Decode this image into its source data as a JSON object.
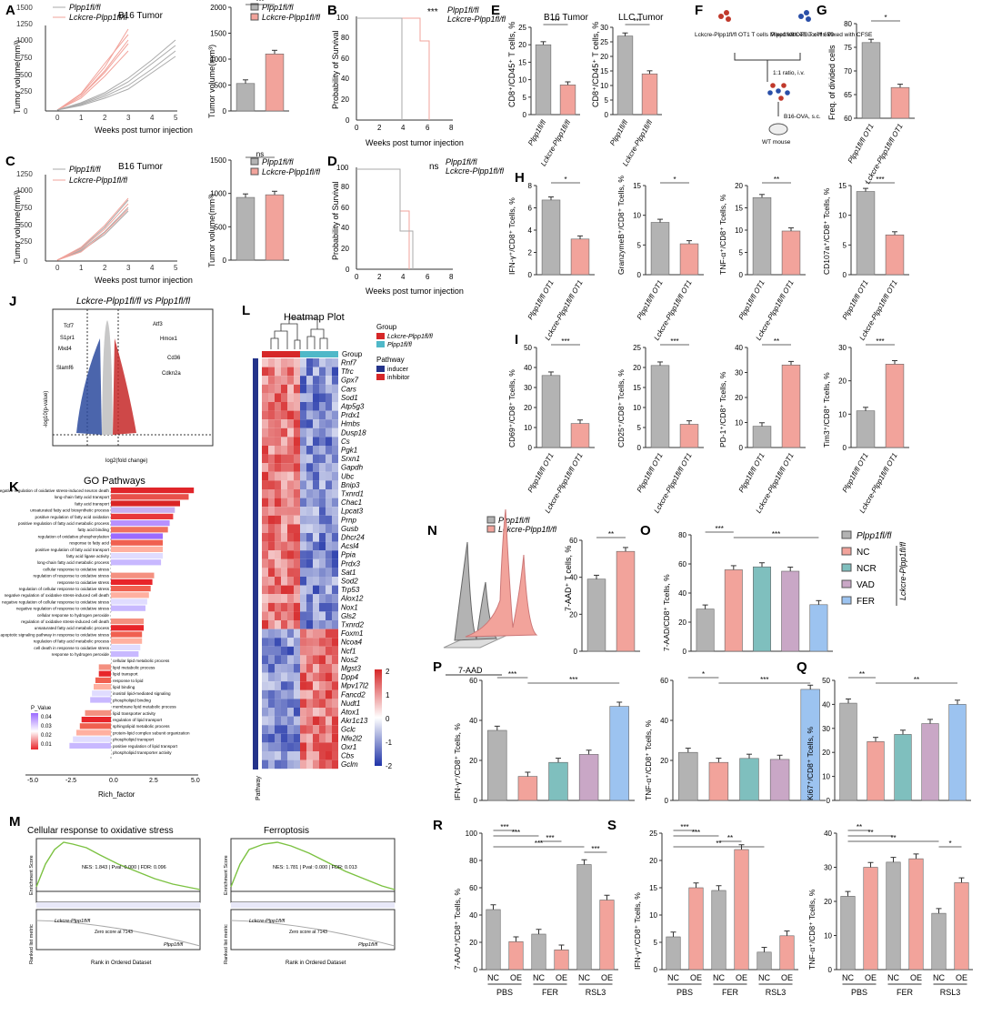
{
  "colors": {
    "grey": "#b3b3b3",
    "pink": "#f2a39b",
    "teal": "#7fbfbe",
    "purple": "#c9a7c6",
    "blue": "#9cc3f0",
    "red": "#d62728",
    "navy": "#24338a",
    "gsea": "#7cc242"
  },
  "panel_letters": [
    "A",
    "B",
    "C",
    "D",
    "E",
    "F",
    "G",
    "H",
    "I",
    "J",
    "K",
    "L",
    "M",
    "N",
    "O",
    "P",
    "Q",
    "R",
    "S"
  ],
  "legend": {
    "flfl": "Plpp1fl/fl",
    "lck": "Lckcre-Plpp1fl/fl",
    "ot1_flfl": "Plpp1fl/fl OT1",
    "ot1_lck": "Lckcre-Plpp1fl/fl OT1",
    "lck_short": "Lckcre-Plpp1fl/fl"
  },
  "panel_text": {
    "a_title": "B16 Tumor",
    "c_title": "B16 Tumor",
    "tumor_vol": "Tumor volume(mm³)",
    "weeks": "Weeks post tumor injection",
    "surv": "Probability of Survival",
    "e_b16": "B16 Tumor",
    "e_llc": "LLC Tumor",
    "e_y": "CD8⁺/CD45⁺ T cells, %",
    "f_left": "Lckcre-Plpp1fl/fl OT1 T cells Mixed with eFluor™ 670",
    "f_right": "Plpp1fl/fl OT1 T cells Mixed with CFSE",
    "f_ratio": "1:1 ratio, i.v.",
    "f_ova": "B16-OVA, s.c.",
    "f_mouse": "WT mouse",
    "g_y": "Freq. of divided cells",
    "j_title": "Lckcre-Plpp1fl/fl vs Plpp1fl/fl",
    "j_x": "log2(fold change)",
    "j_y": "-log10(p-value)",
    "k_title": "GO Pathways",
    "k_x": "Rich_factor",
    "k_legend": "P_Value",
    "l_title": "Heatmap Plot",
    "l_group": "Group",
    "l_pathway": "Pathway",
    "l_inducer": "inducer",
    "l_inhibitor": "inhibitor",
    "m1": "Cellular response to oxidative stress",
    "m2": "Ferroptosis",
    "m_es": "Enrichment Score",
    "m_rl": "Ranked list metric",
    "m_rank": "Rank in Ordered Dataset",
    "m_zero": "Zero score at 7143",
    "m1_stats": "NES: 1.843 | Pval: 0.000 | FDR: 0.096",
    "m2_stats": "NES: 1.781 | Pval: 0.000 | FDR: 0.013",
    "n_x": "7-AAD",
    "n_y": "7-AAD⁺ T cells, %",
    "o_y": "7-AAD/CD8⁺ Tcells, %",
    "ns": "ns",
    "sig1": "*",
    "sig2": "**",
    "sig3": "***"
  },
  "chart_data": [
    {
      "panel": "A",
      "type": "line",
      "title": "B16 Tumor",
      "xlabel": "Weeks post tumor injection",
      "ylabel": "Tumor volume(mm³)",
      "xlim": [
        0,
        5
      ],
      "ylim": [
        0,
        1500
      ],
      "xticks": [
        0,
        1,
        2,
        3,
        4,
        5
      ],
      "yticks": [
        0,
        250,
        500,
        750,
        1000,
        1250,
        1500
      ]
    },
    {
      "panel": "A2",
      "type": "bar",
      "categories": [
        "Plpp1fl/fl",
        "Lckcre-Plpp1fl/fl"
      ],
      "values": [
        530,
        1100
      ],
      "ylabel": "Tumor volume(mm³)",
      "ylim": [
        0,
        2000
      ],
      "sig": "***"
    },
    {
      "panel": "B",
      "type": "line",
      "xlabel": "Weeks post tumor injection",
      "ylabel": "Probability of Survival",
      "xlim": [
        0,
        8
      ],
      "ylim": [
        0,
        100
      ],
      "sig": "***"
    },
    {
      "panel": "C",
      "type": "line",
      "title": "B16 Tumor",
      "xlim": [
        0,
        5
      ],
      "ylim": [
        0,
        1500
      ]
    },
    {
      "panel": "C2",
      "type": "bar",
      "categories": [
        "Plpp1fl/fl",
        "Lckcre-Plpp1fl/fl"
      ],
      "values": [
        940,
        980
      ],
      "ylim": [
        0,
        1500
      ],
      "sig": "ns"
    },
    {
      "panel": "D",
      "type": "line",
      "xlim": [
        0,
        8
      ],
      "ylim": [
        0,
        100
      ],
      "sig": "ns"
    },
    {
      "panel": "E1",
      "type": "bar",
      "title": "B16 Tumor",
      "categories": [
        "Plpp1fl/fl",
        "Lckcre-Plpp1fl/fl"
      ],
      "values": [
        20,
        8.5
      ],
      "ylim": [
        0,
        25
      ],
      "sig": "***"
    },
    {
      "panel": "E2",
      "type": "bar",
      "title": "LLC Tumor",
      "categories": [
        "Plpp1fl/fl",
        "Lckcre-Plpp1fl/fl"
      ],
      "values": [
        27,
        14
      ],
      "ylim": [
        0,
        30
      ],
      "sig": "***"
    },
    {
      "panel": "G",
      "type": "bar",
      "categories": [
        "Plpp1fl/fl OT1",
        "Lckcre-Plpp1fl/fl OT1"
      ],
      "values": [
        76,
        66.5
      ],
      "ylim": [
        60,
        80
      ],
      "sig": "*"
    },
    {
      "panel": "H1",
      "type": "bar",
      "ylabel": "IFN-γ⁺/CD8⁺ Tcells, %",
      "categories": [
        "Plpp1fl/fl OT1",
        "Lckcre-Plpp1fl/fl OT1"
      ],
      "values": [
        6.7,
        3.2
      ],
      "ylim": [
        0,
        8
      ],
      "sig": "*"
    },
    {
      "panel": "H2",
      "type": "bar",
      "ylabel": "GranzymeB⁺/CD8⁺ Tcells, %",
      "categories": [
        "Plpp1fl/fl OT1",
        "Lckcre-Plpp1fl/fl OT1"
      ],
      "values": [
        8.8,
        5.2
      ],
      "ylim": [
        0,
        15
      ],
      "sig": "*"
    },
    {
      "panel": "H3",
      "type": "bar",
      "ylabel": "TNF-α⁺/CD8⁺ Tcells, %",
      "categories": [
        "Plpp1fl/fl OT1",
        "Lckcre-Plpp1fl/fl OT1"
      ],
      "values": [
        17.3,
        9.8
      ],
      "ylim": [
        0,
        20
      ],
      "sig": "**"
    },
    {
      "panel": "H4",
      "type": "bar",
      "ylabel": "CD107a⁺/CD8⁺ Tcells, %",
      "categories": [
        "Plpp1fl/fl OT1",
        "Lckcre-Plpp1fl/fl OT1"
      ],
      "values": [
        14,
        6.7
      ],
      "ylim": [
        0,
        15
      ],
      "sig": "***"
    },
    {
      "panel": "I1",
      "type": "bar",
      "ylabel": "CD69⁺/CD8⁺ Tcells, %",
      "categories": [
        "Plpp1fl/fl OT1",
        "Lckcre-Plpp1fl/fl OT1"
      ],
      "values": [
        36,
        12
      ],
      "ylim": [
        0,
        50
      ],
      "sig": "***"
    },
    {
      "panel": "I2",
      "type": "bar",
      "ylabel": "CD25⁺/CD8⁺ Tcells, %",
      "categories": [
        "Plpp1fl/fl OT1",
        "Lckcre-Plpp1fl/fl OT1"
      ],
      "values": [
        20.5,
        5.8
      ],
      "ylim": [
        0,
        25
      ],
      "sig": "***"
    },
    {
      "panel": "I3",
      "type": "bar",
      "ylabel": "PD-1⁺/CD8⁺ Tcells, %",
      "categories": [
        "Plpp1fl/fl OT1",
        "Lckcre-Plpp1fl/fl OT1"
      ],
      "values": [
        8.5,
        33
      ],
      "ylim": [
        0,
        40
      ],
      "sig": "**"
    },
    {
      "panel": "I4",
      "type": "bar",
      "ylabel": "Tim3⁺/CD8⁺ Tcells, %",
      "categories": [
        "Plpp1fl/fl OT1",
        "Lckcre-Plpp1fl/fl OT1"
      ],
      "values": [
        11,
        25
      ],
      "ylim": [
        0,
        30
      ],
      "sig": "***"
    },
    {
      "panel": "N",
      "type": "bar",
      "ylabel": "7-AAD⁺ T cells, %",
      "categories": [
        "Plpp1fl/fl",
        "Lckcre-Plpp1fl/fl"
      ],
      "values": [
        39,
        54
      ],
      "ylim": [
        0,
        60
      ],
      "sig": "**"
    },
    {
      "panel": "O",
      "type": "bar",
      "ylabel": "7-AAD/CD8⁺ Tcells, %",
      "categories": [
        "Plpp1fl/fl",
        "NC",
        "NCR",
        "VAD",
        "FER"
      ],
      "values": [
        29,
        56,
        58,
        55,
        32
      ],
      "ylim": [
        0,
        80
      ],
      "legend": [
        "Plpp1fl/fl",
        "NC",
        "NCR",
        "VAD",
        "FER"
      ]
    },
    {
      "panel": "P1",
      "type": "bar",
      "ylabel": "IFN-γ⁺/CD8⁺ Tcells, %",
      "categories": [
        "Plpp1fl/fl",
        "NC",
        "NCR",
        "VAD",
        "FER"
      ],
      "values": [
        35,
        12,
        19,
        23,
        47
      ],
      "ylim": [
        0,
        60
      ]
    },
    {
      "panel": "P2",
      "type": "bar",
      "ylabel": "TNF-α⁺/CD8⁺ Tcells, %",
      "categories": [
        "Plpp1fl/fl",
        "NC",
        "NCR",
        "VAD",
        "FER"
      ],
      "values": [
        24,
        19,
        21,
        20.5,
        55.5
      ],
      "ylim": [
        0,
        60
      ]
    },
    {
      "panel": "Q",
      "type": "bar",
      "ylabel": "Ki67⁺/CD8⁺ Tcells, %",
      "categories": [
        "Plpp1fl/fl",
        "NC",
        "NCR",
        "VAD",
        "FER"
      ],
      "values": [
        40.5,
        24.5,
        27.5,
        32,
        40
      ],
      "ylim": [
        0,
        50
      ]
    },
    {
      "panel": "R",
      "type": "bar",
      "ylabel": "7-AAD⁺/CD8⁺ Tcells, %",
      "groups": [
        "PBS",
        "FER",
        "RSL3"
      ],
      "categories": [
        "NC",
        "OE",
        "NC",
        "OE",
        "NC",
        "OE"
      ],
      "values": [
        44,
        20.5,
        26,
        14.5,
        77,
        51
      ],
      "ylim": [
        0,
        100
      ]
    },
    {
      "panel": "S1",
      "type": "bar",
      "ylabel": "IFN-γ⁺/CD8⁺ Tcells, %",
      "groups": [
        "PBS",
        "FER",
        "RSL3"
      ],
      "categories": [
        "NC",
        "OE",
        "NC",
        "OE",
        "NC",
        "OE"
      ],
      "values": [
        6,
        15,
        14.5,
        22,
        3.2,
        6.2
      ],
      "ylim": [
        0,
        25
      ]
    },
    {
      "panel": "S2",
      "type": "bar",
      "ylabel": "TNF-α⁺/CD8⁺ Tcells, %",
      "groups": [
        "PBS",
        "FER",
        "RSL3"
      ],
      "categories": [
        "NC",
        "OE",
        "NC",
        "OE",
        "NC",
        "OE"
      ],
      "values": [
        21.5,
        30,
        31.5,
        32.5,
        16.5,
        25.5
      ],
      "ylim": [
        0,
        40
      ]
    },
    {
      "panel": "L",
      "type": "heatmap",
      "title": "Heatmap Plot",
      "genes": [
        "Rnf7",
        "Tfrc",
        "Gpx7",
        "Cars",
        "Sod1",
        "Atp5g3",
        "Prdx1",
        "Hmbs",
        "Dusp18",
        "Cs",
        "Pgk1",
        "Srxn1",
        "Gapdh",
        "Ubc",
        "Bnip3",
        "Txnrd1",
        "Chac1",
        "Lpcat3",
        "Prnp",
        "Gusb",
        "Dhcr24",
        "Acsl4",
        "Ppia",
        "Prdx3",
        "Sat1",
        "Sod2",
        "Trp53",
        "Alox12",
        "Nox1",
        "Gls2",
        "Txnrd2",
        "Foxm1",
        "Ncoa4",
        "Ncf1",
        "Nos2",
        "Mgst3",
        "Dpp4",
        "Mpv17l2",
        "Fancd2",
        "Nudt1",
        "Atox1",
        "Akr1c13",
        "Gclc",
        "Nfe2l2",
        "Oxr1",
        "Cbs",
        "Gclm"
      ],
      "scale": [
        2,
        1,
        0,
        -1,
        -2
      ]
    },
    {
      "panel": "K",
      "type": "bar",
      "title": "GO Pathways",
      "xlabel": "Rich_factor",
      "xlim": [
        -5,
        5
      ],
      "terms": [
        "negative regulation of oxidative stress-induced neuron death",
        "long-chain fatty acid transport",
        "fatty acid transport",
        "unsaturated fatty acid biosynthetic process",
        "positive regulation of fatty acid oxidation",
        "positive regulation of fatty acid metabolic process",
        "fatty acid binding",
        "regulation of oxidative phosphorylation",
        "response to fatty acid",
        "positive regulation of fatty acid transport",
        "fatty acid ligase activity",
        "long-chain fatty acid metabolic process",
        "cellular response to oxidative stress",
        "regulation of response to oxidative stress",
        "response to oxidative stress",
        "regulation of cellular response to oxidative stress",
        "negative regulation of oxidative stress-induced cell death",
        "negative regulation of cellular response to oxidative stress",
        "negative regulation of response to oxidative stress",
        "cellular response to hydrogen peroxide",
        "regulation of oxidative stress-induced cell death",
        "unsaturated fatty acid metabolic process",
        "intrinsic apoptotic signaling pathway in response to oxidative stress",
        "regulation of fatty acid metabolic process",
        "cell death in response to oxidative stress",
        "response to hydrogen peroxide",
        "cellular lipid metabolic process",
        "lipid metabolic process",
        "lipid transport",
        "response to lipid",
        "lipid binding",
        "inositol lipid-mediated signaling",
        "phospholipid binding",
        "membrane lipid metabolic process",
        "lipid transporter activity",
        "regulation of lipid transport",
        "sphingolipid metabolic process",
        "protein-lipid complex subunit organization",
        "phospholipid transport",
        "positive regulation of lipid transport",
        "phospholipid transporter activity"
      ],
      "values": [
        4.8,
        4.5,
        4.0,
        3.7,
        3.6,
        3.4,
        3.3,
        3.0,
        3.0,
        3.0,
        3.0,
        2.9,
        2.7,
        2.5,
        2.4,
        2.3,
        2.2,
        2.1,
        2.0,
        2.0,
        1.9,
        1.9,
        1.8,
        1.8,
        1.7,
        1.6,
        -0.5,
        -0.7,
        -0.7,
        -0.9,
        -1.0,
        -1.1,
        -1.2,
        -1.4,
        -1.5,
        -1.7,
        -1.8,
        -2.0,
        -2.2,
        -2.4,
        -2.6
      ]
    }
  ]
}
